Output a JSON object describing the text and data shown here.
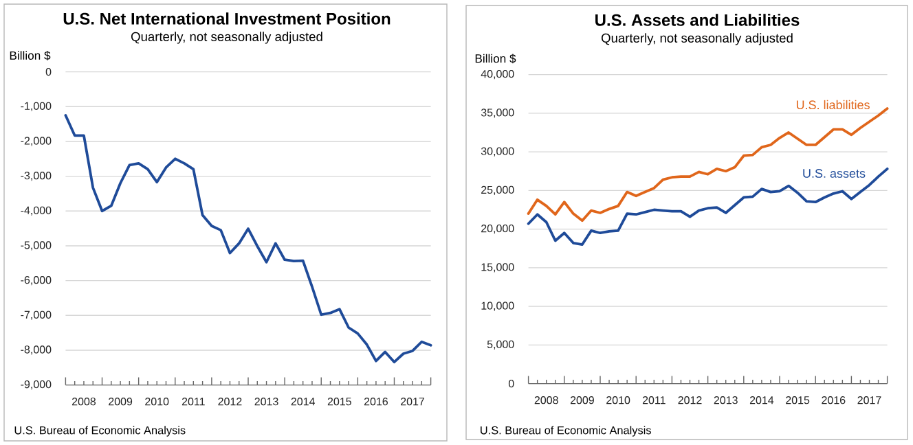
{
  "chart_data": [
    {
      "type": "line",
      "title": "U.S. Net International Investment Position",
      "subtitle": "Quarterly, not seasonally adjusted",
      "ylabel": "Billion $",
      "x": [
        2008,
        2008.25,
        2008.5,
        2008.75,
        2009,
        2009.25,
        2009.5,
        2009.75,
        2010,
        2010.25,
        2010.5,
        2010.75,
        2011,
        2011.25,
        2011.5,
        2011.75,
        2012,
        2012.25,
        2012.5,
        2012.75,
        2013,
        2013.25,
        2013.5,
        2013.75,
        2014,
        2014.25,
        2014.5,
        2014.75,
        2015,
        2015.25,
        2015.5,
        2015.75,
        2016,
        2016.25,
        2016.5,
        2016.75,
        2017,
        2017.25,
        2017.5,
        2017.75,
        2018
      ],
      "series": [
        {
          "color": "#1f4b99",
          "values": [
            -1250,
            -1830,
            -1830,
            -3330,
            -4000,
            -3850,
            -3200,
            -2680,
            -2630,
            -2800,
            -3170,
            -2750,
            -2500,
            -2630,
            -2800,
            -4120,
            -4430,
            -4550,
            -5210,
            -4930,
            -4510,
            -5010,
            -5470,
            -4930,
            -5400,
            -5440,
            -5430,
            -6180,
            -6980,
            -6930,
            -6820,
            -7350,
            -7520,
            -7840,
            -8310,
            -8050,
            -8340,
            -8100,
            -8020,
            -7760,
            -7860
          ]
        }
      ],
      "xlim": [
        2008,
        2018
      ],
      "xticks": [
        {
          "value": 2008,
          "label": null
        },
        {
          "value": 2008.5,
          "label": "2008"
        },
        {
          "value": 2009,
          "label": null
        },
        {
          "value": 2009.5,
          "label": "2009"
        },
        {
          "value": 2010,
          "label": null
        },
        {
          "value": 2010.5,
          "label": "2010"
        },
        {
          "value": 2011,
          "label": null
        },
        {
          "value": 2011.5,
          "label": "2011"
        },
        {
          "value": 2012,
          "label": null
        },
        {
          "value": 2012.5,
          "label": "2012"
        },
        {
          "value": 2013,
          "label": null
        },
        {
          "value": 2013.5,
          "label": "2013"
        },
        {
          "value": 2014,
          "label": null
        },
        {
          "value": 2014.5,
          "label": "2014"
        },
        {
          "value": 2015,
          "label": null
        },
        {
          "value": 2015.5,
          "label": "2015"
        },
        {
          "value": 2016,
          "label": null
        },
        {
          "value": 2016.5,
          "label": "2016"
        },
        {
          "value": 2017,
          "label": null
        },
        {
          "value": 2017.5,
          "label": "2017"
        },
        {
          "value": 2018,
          "label": null
        }
      ],
      "ylim": [
        -9000,
        0
      ],
      "yticks": [
        0,
        {
          "value": -1000,
          "label": "-1,000"
        },
        {
          "value": -2000,
          "label": "-2,000"
        },
        {
          "value": -3000,
          "label": "-3,000"
        },
        {
          "value": -4000,
          "label": "-4,000"
        },
        {
          "value": -5000,
          "label": "-5,000"
        },
        {
          "value": -6000,
          "label": "-6,000"
        },
        {
          "value": -7000,
          "label": "-7,000"
        },
        {
          "value": -8000,
          "label": "-8,000"
        },
        {
          "value": -9000,
          "label": "-9,000"
        }
      ],
      "grid": "y",
      "annotations": [
        "U.S. Bureau of Economic Analysis"
      ]
    },
    {
      "type": "line",
      "title": "U.S. Assets and Liabilities",
      "subtitle": "Quarterly, not seasonally adjusted",
      "ylabel": "Billion $",
      "x": [
        2008,
        2008.25,
        2008.5,
        2008.75,
        2009,
        2009.25,
        2009.5,
        2009.75,
        2010,
        2010.25,
        2010.5,
        2010.75,
        2011,
        2011.25,
        2011.5,
        2011.75,
        2012,
        2012.25,
        2012.5,
        2012.75,
        2013,
        2013.25,
        2013.5,
        2013.75,
        2014,
        2014.25,
        2014.5,
        2014.75,
        2015,
        2015.25,
        2015.5,
        2015.75,
        2016,
        2016.25,
        2016.5,
        2016.75,
        2017,
        2017.25,
        2017.5,
        2017.75,
        2018
      ],
      "series": [
        {
          "name": "U.S. liabilities",
          "color": "#e0661b",
          "values": [
            22000,
            23800,
            23000,
            21900,
            23500,
            22000,
            21100,
            22400,
            22100,
            22600,
            23000,
            24800,
            24300,
            24800,
            25300,
            26400,
            26700,
            26800,
            26800,
            27400,
            27100,
            27800,
            27500,
            28000,
            29500,
            29600,
            30600,
            30900,
            31800,
            32500,
            31700,
            30900,
            30900,
            31900,
            32900,
            32900,
            32200,
            33100,
            33900,
            34700,
            35600
          ]
        },
        {
          "name": "U.S. assets",
          "color": "#1f4b99",
          "values": [
            20700,
            21900,
            20900,
            18500,
            19500,
            18200,
            18000,
            19800,
            19500,
            19700,
            19800,
            22000,
            21900,
            22200,
            22500,
            22400,
            22300,
            22300,
            21600,
            22400,
            22700,
            22800,
            22100,
            23100,
            24100,
            24200,
            25200,
            24800,
            24900,
            25600,
            24700,
            23600,
            23500,
            24100,
            24600,
            24900,
            23900,
            24800,
            25700,
            26800,
            27800
          ]
        }
      ],
      "xlim": [
        2008,
        2018
      ],
      "xticks": [
        {
          "value": 2008,
          "label": null
        },
        {
          "value": 2008.5,
          "label": "2008"
        },
        {
          "value": 2009,
          "label": null
        },
        {
          "value": 2009.5,
          "label": "2009"
        },
        {
          "value": 2010,
          "label": null
        },
        {
          "value": 2010.5,
          "label": "2010"
        },
        {
          "value": 2011,
          "label": null
        },
        {
          "value": 2011.5,
          "label": "2011"
        },
        {
          "value": 2012,
          "label": null
        },
        {
          "value": 2012.5,
          "label": "2012"
        },
        {
          "value": 2013,
          "label": null
        },
        {
          "value": 2013.5,
          "label": "2013"
        },
        {
          "value": 2014,
          "label": null
        },
        {
          "value": 2014.5,
          "label": "2014"
        },
        {
          "value": 2015,
          "label": null
        },
        {
          "value": 2015.5,
          "label": "2015"
        },
        {
          "value": 2016,
          "label": null
        },
        {
          "value": 2016.5,
          "label": "2016"
        },
        {
          "value": 2017,
          "label": null
        },
        {
          "value": 2017.5,
          "label": "2017"
        },
        {
          "value": 2018,
          "label": null
        }
      ],
      "ylim": [
        0,
        40000
      ],
      "yticks": [
        0,
        {
          "value": 5000,
          "label": "5,000"
        },
        {
          "value": 10000,
          "label": "10,000"
        },
        {
          "value": 15000,
          "label": "15,000"
        },
        {
          "value": 20000,
          "label": "20,000"
        },
        {
          "value": 25000,
          "label": "25,000"
        },
        {
          "value": 30000,
          "label": "30,000"
        },
        {
          "value": 35000,
          "label": "35,000"
        },
        {
          "value": 40000,
          "label": "40,000"
        }
      ],
      "grid": "y",
      "annotations": [
        "U.S. Bureau of Economic Analysis"
      ]
    }
  ]
}
